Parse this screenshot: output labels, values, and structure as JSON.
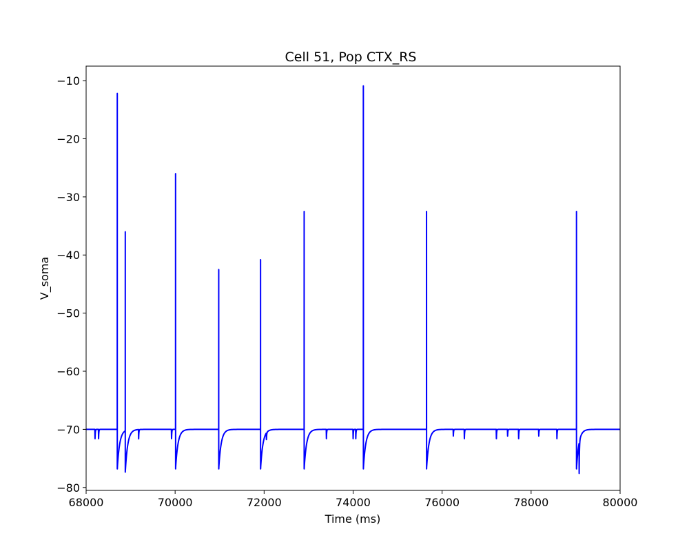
{
  "chart_data": {
    "type": "line",
    "title": "Cell 51, Pop CTX_RS",
    "xlabel": "Time (ms)",
    "ylabel": "V_soma",
    "xlim": [
      68000,
      80000
    ],
    "ylim": [
      -80.5,
      -7.5
    ],
    "xticks": [
      68000,
      70000,
      72000,
      74000,
      76000,
      78000,
      80000
    ],
    "yticks": [
      -80,
      -70,
      -60,
      -50,
      -40,
      -30,
      -20,
      -10
    ],
    "grid": false,
    "legend": "none",
    "series": [
      {
        "color": "#0000ff",
        "resting_potential": -70,
        "spikes": [
          {
            "t": 68700,
            "peak": -12.2,
            "trough": -76.8
          },
          {
            "t": 68880,
            "peak": -36.0,
            "trough": -77.1
          },
          {
            "t": 70010,
            "peak": -26.0,
            "trough": -76.8
          },
          {
            "t": 70980,
            "peak": -42.5,
            "trough": -76.8
          },
          {
            "t": 71920,
            "peak": -40.8,
            "trough": -76.8
          },
          {
            "t": 72900,
            "peak": -32.5,
            "trough": -76.8
          },
          {
            "t": 74230,
            "peak": -10.9,
            "trough": -76.8
          },
          {
            "t": 75650,
            "peak": -32.5,
            "trough": -76.8
          },
          {
            "t": 79020,
            "peak": -32.5,
            "trough": -76.8
          }
        ],
        "dips": [
          {
            "t": 68200,
            "depth": -71.6
          },
          {
            "t": 68280,
            "depth": -71.6
          },
          {
            "t": 69180,
            "depth": -71.6
          },
          {
            "t": 69920,
            "depth": -71.6
          },
          {
            "t": 72050,
            "depth": -71.6
          },
          {
            "t": 73400,
            "depth": -71.6
          },
          {
            "t": 74000,
            "depth": -71.6
          },
          {
            "t": 74060,
            "depth": -71.6
          },
          {
            "t": 76250,
            "depth": -71.6
          },
          {
            "t": 76500,
            "depth": -71.6
          },
          {
            "t": 77220,
            "depth": -71.6
          },
          {
            "t": 77470,
            "depth": -71.6
          },
          {
            "t": 77720,
            "depth": -71.6
          },
          {
            "t": 78170,
            "depth": -71.6
          },
          {
            "t": 78580,
            "depth": -71.6
          },
          {
            "t": 79080,
            "depth": -75.3
          }
        ]
      }
    ]
  }
}
